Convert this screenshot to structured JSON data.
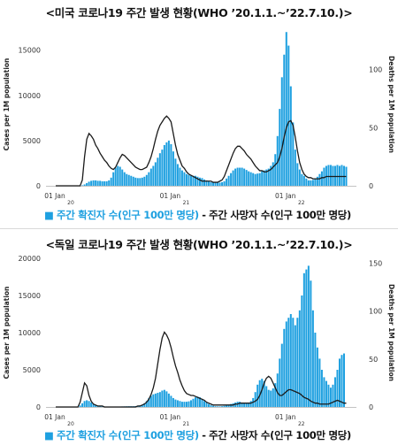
{
  "charts": [
    {
      "title": "<미국 코로나19 주간 발생 현황(WHO ’20.1.1.~’22.7.10.)>",
      "legend": {
        "cases": "주간 확진자 수(인구 100만 명당)",
        "separator": "-",
        "deaths": "주간 사망자 수(인구 100만 명당)"
      }
    },
    {
      "title": "<독일 코로나19 주간 발생 현황(WHO ’20.1.1.~’22.7.10.)>",
      "legend": {
        "cases": "주간 확진자 수(인구 100만 명당)",
        "separator": "-",
        "deaths": "주간 사망자 수(인구 100만 명당)"
      }
    }
  ],
  "colors": {
    "bars": "#1ea0e0",
    "line": "#1a1a1a",
    "axis": "#333333"
  },
  "icons": {
    "legend_square": "blue-square"
  },
  "chart_data": [
    {
      "type": "bar",
      "overlay_type": "line",
      "country": "미국",
      "xlabel": "",
      "ylabel": "Cases per 1M population",
      "y2label": "Deaths per 1M population",
      "ylim": [
        0,
        18000
      ],
      "y2lim": [
        0,
        140
      ],
      "yticks": [
        0,
        5000,
        10000,
        15000
      ],
      "y2ticks": [
        0,
        50,
        100
      ],
      "x_ticks": [
        {
          "label": "01 Jan",
          "week": 0
        },
        {
          "label": "20",
          "week": 0
        },
        {
          "label": "01 Jan",
          "week": 52
        },
        {
          "label": "21",
          "week": 52
        },
        {
          "label": "01 Jan",
          "week": 104
        },
        {
          "label": "22",
          "week": 104
        }
      ],
      "weeks": 132,
      "series": [
        {
          "name": "주간 확진자 수(인구 100만 명당)",
          "axis": "left",
          "kind": "bar",
          "values": [
            0,
            0,
            0,
            0,
            0,
            0,
            0,
            0,
            0,
            0,
            0,
            0,
            50,
            150,
            300,
            450,
            550,
            600,
            600,
            550,
            550,
            500,
            500,
            500,
            600,
            900,
            1500,
            2000,
            2200,
            2100,
            1800,
            1500,
            1300,
            1200,
            1100,
            1000,
            900,
            850,
            850,
            900,
            1000,
            1200,
            1500,
            1900,
            2200,
            2600,
            3100,
            3600,
            4000,
            4500,
            4800,
            5000,
            4600,
            3800,
            3000,
            2400,
            2000,
            1700,
            1500,
            1300,
            1200,
            1100,
            1100,
            1100,
            1000,
            900,
            850,
            700,
            600,
            500,
            400,
            380,
            350,
            350,
            350,
            400,
            500,
            800,
            1100,
            1400,
            1700,
            1900,
            2000,
            2000,
            2000,
            1900,
            1750,
            1600,
            1500,
            1400,
            1300,
            1350,
            1400,
            1600,
            1700,
            1800,
            1900,
            2200,
            2600,
            3500,
            5500,
            8500,
            12000,
            14500,
            17000,
            15500,
            11000,
            7000,
            4000,
            2500,
            1800,
            1300,
            1100,
            800,
            600,
            600,
            650,
            800,
            1000,
            1300,
            1600,
            2000,
            2200,
            2300,
            2300,
            2200,
            2200,
            2300,
            2200,
            2300,
            2200,
            2100
          ]
        },
        {
          "name": "주간 사망자 수(인구 100만 명당)",
          "axis": "right",
          "kind": "line",
          "values": [
            0,
            0,
            0,
            0,
            0,
            0,
            0,
            0,
            0,
            0,
            0,
            0,
            5,
            25,
            40,
            45,
            43,
            40,
            35,
            32,
            28,
            25,
            22,
            20,
            17,
            15,
            14,
            16,
            20,
            24,
            27,
            26,
            24,
            22,
            20,
            18,
            16,
            15,
            14,
            14,
            15,
            16,
            20,
            25,
            32,
            40,
            47,
            52,
            55,
            58,
            60,
            58,
            55,
            45,
            35,
            27,
            22,
            17,
            15,
            12,
            10,
            9,
            8,
            7,
            6,
            5,
            4,
            4,
            4,
            4,
            4,
            3,
            3,
            3,
            4,
            5,
            8,
            13,
            18,
            23,
            28,
            32,
            34,
            34,
            32,
            30,
            27,
            25,
            23,
            20,
            17,
            15,
            13,
            13,
            12,
            12,
            13,
            14,
            16,
            18,
            20,
            25,
            32,
            42,
            50,
            55,
            56,
            52,
            42,
            30,
            20,
            14,
            10,
            8,
            7,
            7,
            6,
            6,
            6,
            6,
            7,
            7,
            8,
            8,
            8,
            8,
            8,
            8,
            8,
            8,
            8,
            8
          ]
        }
      ]
    },
    {
      "type": "bar",
      "overlay_type": "line",
      "country": "독일",
      "xlabel": "",
      "ylabel": "Cases per 1M population",
      "y2label": "Deaths per 1M population",
      "ylim": [
        0,
        20000
      ],
      "y2lim": [
        0,
        155
      ],
      "yticks": [
        0,
        5000,
        10000,
        15000,
        20000
      ],
      "y2ticks": [
        0,
        50,
        100,
        150
      ],
      "x_ticks": [
        {
          "label": "01 Jan",
          "week": 0
        },
        {
          "label": "20",
          "week": 0
        },
        {
          "label": "01 Jan",
          "week": 52
        },
        {
          "label": "21",
          "week": 52
        },
        {
          "label": "01 Jan",
          "week": 104
        },
        {
          "label": "22",
          "week": 104
        }
      ],
      "weeks": 132,
      "series": [
        {
          "name": "주간 확진자 수(인구 100만 명당)",
          "axis": "left",
          "kind": "bar",
          "values": [
            0,
            0,
            0,
            0,
            0,
            0,
            0,
            0,
            0,
            0,
            0,
            200,
            500,
            800,
            900,
            800,
            600,
            400,
            250,
            150,
            100,
            80,
            60,
            50,
            50,
            50,
            50,
            60,
            60,
            60,
            70,
            80,
            90,
            100,
            100,
            100,
            120,
            150,
            200,
            300,
            500,
            800,
            1200,
            1500,
            1700,
            1800,
            1900,
            2000,
            2200,
            2300,
            2100,
            1800,
            1500,
            1200,
            1000,
            900,
            800,
            700,
            700,
            700,
            750,
            900,
            1100,
            1300,
            1400,
            1300,
            1100,
            800,
            600,
            400,
            250,
            150,
            100,
            80,
            80,
            100,
            150,
            200,
            300,
            400,
            500,
            600,
            700,
            700,
            600,
            500,
            500,
            600,
            800,
            1200,
            2000,
            3000,
            3600,
            3800,
            3500,
            2800,
            2300,
            2200,
            2500,
            3200,
            4500,
            6500,
            8500,
            10500,
            11500,
            12000,
            12500,
            12000,
            11000,
            12000,
            13000,
            15000,
            18000,
            18500,
            19000,
            17000,
            13000,
            10000,
            8000,
            6500,
            5000,
            4000,
            3500,
            3000,
            2600,
            3000,
            4000,
            5000,
            6500,
            7000,
            7200
          ]
        },
        {
          "name": "주간 사망자 수(인구 100만 명당)",
          "axis": "right",
          "kind": "line",
          "values": [
            0,
            0,
            0,
            0,
            0,
            0,
            0,
            0,
            0,
            0,
            0,
            5,
            15,
            25,
            22,
            12,
            6,
            3,
            2,
            1,
            1,
            1,
            0,
            0,
            0,
            0,
            0,
            0,
            0,
            0,
            0,
            0,
            0,
            0,
            0,
            0,
            0,
            1,
            1,
            2,
            3,
            5,
            8,
            13,
            20,
            30,
            45,
            60,
            72,
            78,
            75,
            70,
            62,
            52,
            43,
            36,
            28,
            22,
            17,
            14,
            13,
            12,
            12,
            11,
            10,
            9,
            8,
            7,
            5,
            4,
            3,
            2,
            2,
            2,
            2,
            2,
            2,
            2,
            2,
            2,
            2,
            3,
            3,
            4,
            4,
            4,
            4,
            4,
            4,
            5,
            6,
            8,
            12,
            18,
            25,
            30,
            32,
            30,
            25,
            20,
            15,
            12,
            12,
            14,
            16,
            18,
            18,
            17,
            16,
            15,
            14,
            12,
            10,
            9,
            8,
            6,
            5,
            4,
            4,
            3,
            3,
            3,
            3,
            3,
            4,
            5,
            6,
            7,
            6,
            5,
            4,
            4
          ]
        }
      ]
    }
  ]
}
